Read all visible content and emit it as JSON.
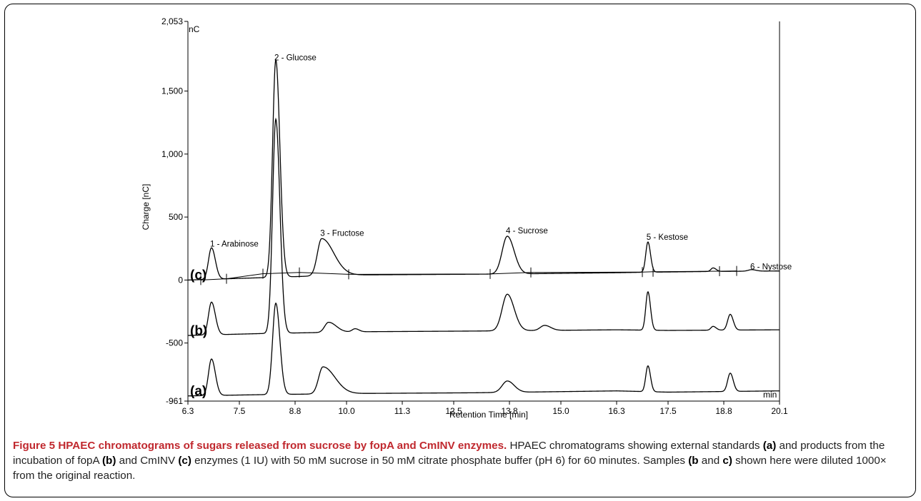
{
  "chart_data": {
    "type": "line",
    "title": "",
    "xlabel": "Retention Time [min]",
    "ylabel": "Charge [nC]",
    "y_unit": "nC",
    "x_unit": "min",
    "xlim": [
      6.3,
      20.1
    ],
    "ylim": [
      -961,
      2053
    ],
    "x_ticks": [
      6.3,
      7.5,
      8.8,
      10.0,
      11.3,
      12.5,
      13.8,
      15.0,
      16.3,
      17.5,
      18.8,
      20.1
    ],
    "x_tick_labels": [
      "6.3",
      "7.5",
      "8.8",
      "10.0",
      "11.3",
      "12.5",
      "13.8",
      "15.0",
      "16.3",
      "17.5",
      "18.8",
      "20.1"
    ],
    "y_ticks": [
      -961,
      -500,
      0,
      500,
      1000,
      1500,
      2053
    ],
    "y_tick_labels": [
      "-961",
      "-500",
      "0",
      "500",
      "1,000",
      "1,500",
      "2,053"
    ],
    "grid": false,
    "series": [
      {
        "name": "(c)",
        "baseline": [
          [
            6.3,
            0
          ],
          [
            10.0,
            40
          ],
          [
            13.8,
            48
          ],
          [
            16.3,
            58
          ],
          [
            17.0,
            62
          ],
          [
            18.5,
            68
          ],
          [
            20.1,
            72
          ]
        ],
        "peaks": [
          {
            "x": 6.85,
            "height": 250,
            "w_left": 0.07,
            "w_right": 0.09
          },
          {
            "x": 8.35,
            "height": 1725,
            "w_left": 0.075,
            "w_right": 0.095
          },
          {
            "x": 9.42,
            "height": 295,
            "w_left": 0.1,
            "w_right": 0.28
          },
          {
            "x": 13.75,
            "height": 300,
            "w_left": 0.12,
            "w_right": 0.16
          },
          {
            "x": 17.03,
            "height": 240,
            "w_left": 0.05,
            "w_right": 0.06
          },
          {
            "x": 18.55,
            "height": 28,
            "w_left": 0.05,
            "w_right": 0.07
          },
          {
            "x": 19.45,
            "height": 12,
            "w_left": 0.08,
            "w_right": 0.1
          }
        ]
      },
      {
        "name": "(b)",
        "baseline": [
          [
            6.3,
            -440
          ],
          [
            8.0,
            -425
          ],
          [
            10.5,
            -410
          ],
          [
            13.0,
            -405
          ],
          [
            16.3,
            -395
          ],
          [
            17.5,
            -400
          ],
          [
            20.1,
            -395
          ]
        ],
        "peaks": [
          {
            "x": 6.85,
            "height": 260,
            "w_left": 0.07,
            "w_right": 0.09
          },
          {
            "x": 8.35,
            "height": 1700,
            "w_left": 0.075,
            "w_right": 0.095
          },
          {
            "x": 9.58,
            "height": 80,
            "w_left": 0.09,
            "w_right": 0.18
          },
          {
            "x": 10.2,
            "height": 25,
            "w_left": 0.07,
            "w_right": 0.09
          },
          {
            "x": 13.75,
            "height": 290,
            "w_left": 0.12,
            "w_right": 0.16
          },
          {
            "x": 14.62,
            "height": 40,
            "w_left": 0.1,
            "w_right": 0.14
          },
          {
            "x": 17.03,
            "height": 305,
            "w_left": 0.05,
            "w_right": 0.06
          },
          {
            "x": 18.55,
            "height": 30,
            "w_left": 0.05,
            "w_right": 0.07
          },
          {
            "x": 18.95,
            "height": 125,
            "w_left": 0.06,
            "w_right": 0.07
          }
        ]
      },
      {
        "name": "(a)",
        "baseline": [
          [
            6.3,
            -920
          ],
          [
            8.0,
            -910
          ],
          [
            10.5,
            -900
          ],
          [
            13.0,
            -895
          ],
          [
            16.3,
            -880
          ],
          [
            17.5,
            -890
          ],
          [
            20.1,
            -880
          ]
        ],
        "peaks": [
          {
            "x": 6.85,
            "height": 290,
            "w_left": 0.07,
            "w_right": 0.09
          },
          {
            "x": 8.35,
            "height": 725,
            "w_left": 0.075,
            "w_right": 0.095
          },
          {
            "x": 9.45,
            "height": 215,
            "w_left": 0.1,
            "w_right": 0.28
          },
          {
            "x": 13.75,
            "height": 90,
            "w_left": 0.12,
            "w_right": 0.16
          },
          {
            "x": 17.03,
            "height": 205,
            "w_left": 0.05,
            "w_right": 0.06
          },
          {
            "x": 18.95,
            "height": 145,
            "w_left": 0.06,
            "w_right": 0.07
          }
        ]
      }
    ],
    "peak_labels": [
      {
        "text": "1 - Arabinose",
        "x": 6.85,
        "y": 265
      },
      {
        "text": "2 - Glucose",
        "x": 8.35,
        "y": 1745
      },
      {
        "text": "3 - Fructose",
        "x": 9.42,
        "y": 350
      },
      {
        "text": "4 - Sucrose",
        "x": 13.75,
        "y": 370
      },
      {
        "text": "5 - Kestose",
        "x": 17.03,
        "y": 320
      },
      {
        "text": "6 - Nystose",
        "x": 19.45,
        "y": 85
      }
    ],
    "integration_baseline": [
      [
        6.6,
        0
      ],
      [
        7.2,
        10
      ],
      [
        8.05,
        50
      ],
      [
        8.9,
        60
      ],
      [
        10.05,
        45
      ],
      [
        13.35,
        48
      ],
      [
        14.3,
        60
      ],
      [
        16.9,
        63
      ],
      [
        17.15,
        66
      ],
      [
        18.7,
        70
      ],
      [
        19.1,
        72
      ]
    ]
  },
  "caption": {
    "label": "Figure 5",
    "title": "HPAEC chromatograms of sugars released from sucrose by fopA and CmINV enzymes.",
    "seg1": "HPAEC chromatograms showing external standards",
    "a": "(a)",
    "seg2": "and products from the incubation of fopA",
    "b": "(b)",
    "seg3": "and CmINV",
    "c": "(c)",
    "seg4": "enzymes (1 IU) with 50 mM sucrose in 50 mM citrate phosphate buffer (pH 6) for 60 minutes. Samples",
    "bc1": "(b",
    "seg5": "and",
    "bc2": "c)",
    "seg6": "shown here were diluted 1000× from the original reaction."
  }
}
